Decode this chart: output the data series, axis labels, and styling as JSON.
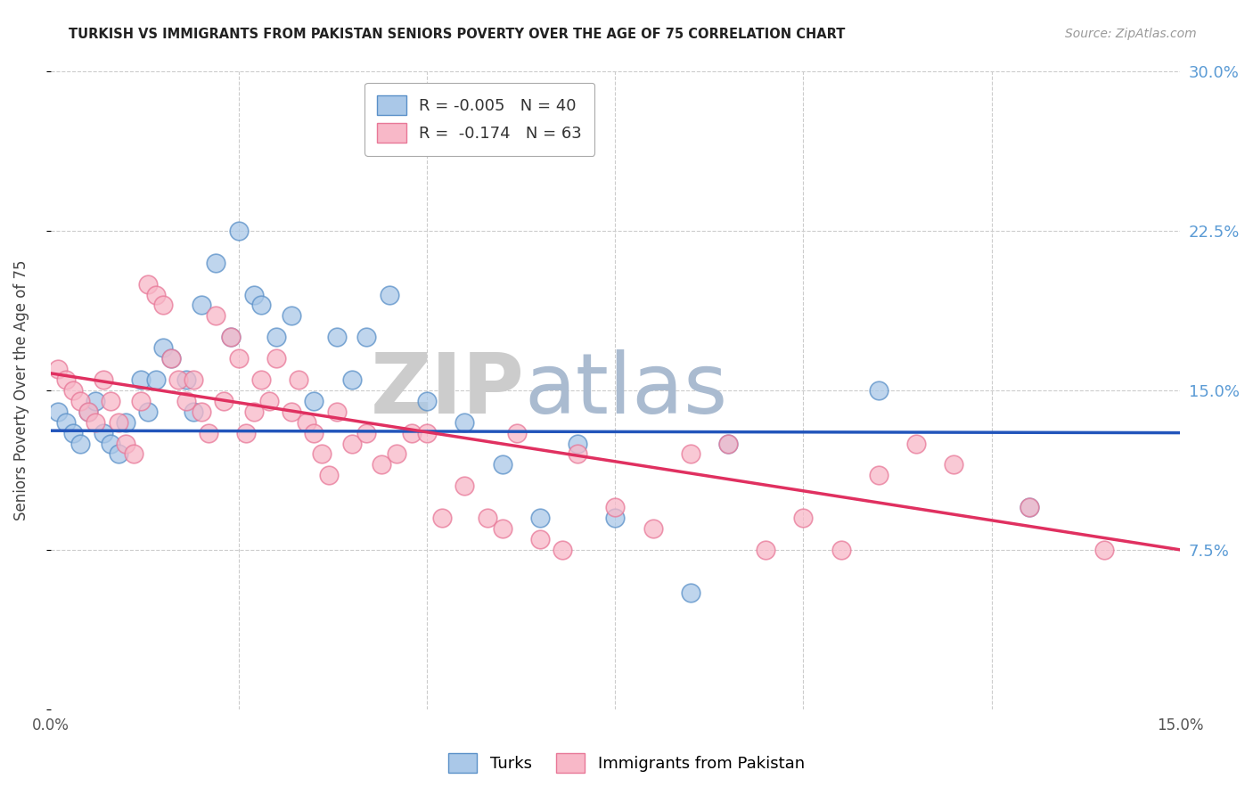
{
  "title": "TURKISH VS IMMIGRANTS FROM PAKISTAN SENIORS POVERTY OVER THE AGE OF 75 CORRELATION CHART",
  "source": "Source: ZipAtlas.com",
  "ylabel_label": "Seniors Poverty Over the Age of 75",
  "xmin": 0.0,
  "xmax": 0.15,
  "ymin": 0.0,
  "ymax": 0.3,
  "legend_label_turks": "Turks",
  "legend_label_pakistan": "Immigrants from Pakistan",
  "turks_color": "#aac8e8",
  "turks_edge_color": "#5a90c8",
  "pakistan_color": "#f8b8c8",
  "pakistan_edge_color": "#e87898",
  "turks_line_color": "#2255bb",
  "pakistan_line_color": "#e03060",
  "watermark_zip": "ZIP",
  "watermark_atlas": "atlas",
  "watermark_zip_color": "#cccccc",
  "watermark_atlas_color": "#aabbd0",
  "turks_R": -0.005,
  "turks_N": 40,
  "pakistan_R": -0.174,
  "pakistan_N": 63,
  "turks_line_y0": 0.131,
  "turks_line_y1": 0.13,
  "pakistan_line_y0": 0.158,
  "pakistan_line_y1": 0.075,
  "turks_x": [
    0.001,
    0.002,
    0.003,
    0.004,
    0.005,
    0.006,
    0.007,
    0.008,
    0.009,
    0.01,
    0.012,
    0.013,
    0.014,
    0.015,
    0.016,
    0.018,
    0.019,
    0.02,
    0.022,
    0.024,
    0.025,
    0.027,
    0.028,
    0.03,
    0.032,
    0.035,
    0.038,
    0.04,
    0.042,
    0.045,
    0.05,
    0.055,
    0.06,
    0.065,
    0.07,
    0.075,
    0.085,
    0.09,
    0.11,
    0.13
  ],
  "turks_y": [
    0.14,
    0.135,
    0.13,
    0.125,
    0.14,
    0.145,
    0.13,
    0.125,
    0.12,
    0.135,
    0.155,
    0.14,
    0.155,
    0.17,
    0.165,
    0.155,
    0.14,
    0.19,
    0.21,
    0.175,
    0.225,
    0.195,
    0.19,
    0.175,
    0.185,
    0.145,
    0.175,
    0.155,
    0.175,
    0.195,
    0.145,
    0.135,
    0.115,
    0.09,
    0.125,
    0.09,
    0.055,
    0.125,
    0.15,
    0.095
  ],
  "pakistan_x": [
    0.001,
    0.002,
    0.003,
    0.004,
    0.005,
    0.006,
    0.007,
    0.008,
    0.009,
    0.01,
    0.011,
    0.012,
    0.013,
    0.014,
    0.015,
    0.016,
    0.017,
    0.018,
    0.019,
    0.02,
    0.021,
    0.022,
    0.023,
    0.024,
    0.025,
    0.026,
    0.027,
    0.028,
    0.029,
    0.03,
    0.032,
    0.033,
    0.034,
    0.035,
    0.036,
    0.037,
    0.038,
    0.04,
    0.042,
    0.044,
    0.046,
    0.048,
    0.05,
    0.052,
    0.055,
    0.058,
    0.06,
    0.062,
    0.065,
    0.068,
    0.07,
    0.075,
    0.08,
    0.085,
    0.09,
    0.095,
    0.1,
    0.105,
    0.11,
    0.115,
    0.12,
    0.13,
    0.14
  ],
  "pakistan_y": [
    0.16,
    0.155,
    0.15,
    0.145,
    0.14,
    0.135,
    0.155,
    0.145,
    0.135,
    0.125,
    0.12,
    0.145,
    0.2,
    0.195,
    0.19,
    0.165,
    0.155,
    0.145,
    0.155,
    0.14,
    0.13,
    0.185,
    0.145,
    0.175,
    0.165,
    0.13,
    0.14,
    0.155,
    0.145,
    0.165,
    0.14,
    0.155,
    0.135,
    0.13,
    0.12,
    0.11,
    0.14,
    0.125,
    0.13,
    0.115,
    0.12,
    0.13,
    0.13,
    0.09,
    0.105,
    0.09,
    0.085,
    0.13,
    0.08,
    0.075,
    0.12,
    0.095,
    0.085,
    0.12,
    0.125,
    0.075,
    0.09,
    0.075,
    0.11,
    0.125,
    0.115,
    0.095,
    0.075
  ]
}
